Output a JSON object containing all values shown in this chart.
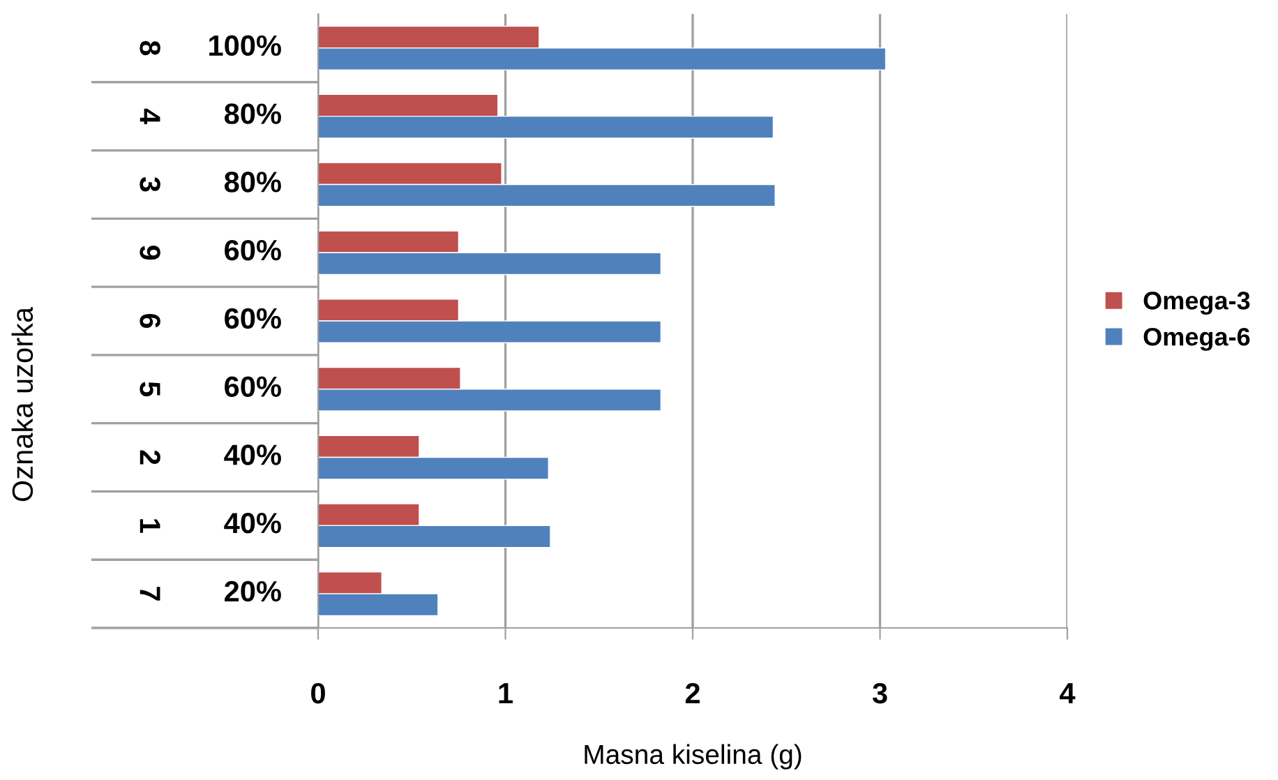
{
  "chart_data": {
    "type": "bar",
    "orientation": "horizontal",
    "xlabel": "Masna kiselina (g)",
    "annotations": [
      "Oznaka uzorka"
    ],
    "categories": [
      "8 100%",
      "4 80%",
      "3 80%",
      "9 60%",
      "6 60%",
      "5 60%",
      "2 40%",
      "1 40%",
      "7 20%"
    ],
    "series": [
      {
        "name": "Omega-3",
        "color": "#c0504d",
        "values": [
          1.18,
          0.96,
          0.98,
          0.75,
          0.75,
          0.76,
          0.54,
          0.54,
          0.34
        ]
      },
      {
        "name": "Omega-6",
        "color": "#4f81bd",
        "values": [
          3.03,
          2.43,
          2.44,
          1.83,
          1.83,
          1.83,
          1.23,
          1.24,
          0.64
        ]
      }
    ],
    "xlim": [
      0,
      4
    ],
    "xticks": [
      0,
      1,
      2,
      3,
      4
    ],
    "grid": "x",
    "legend": "right"
  }
}
